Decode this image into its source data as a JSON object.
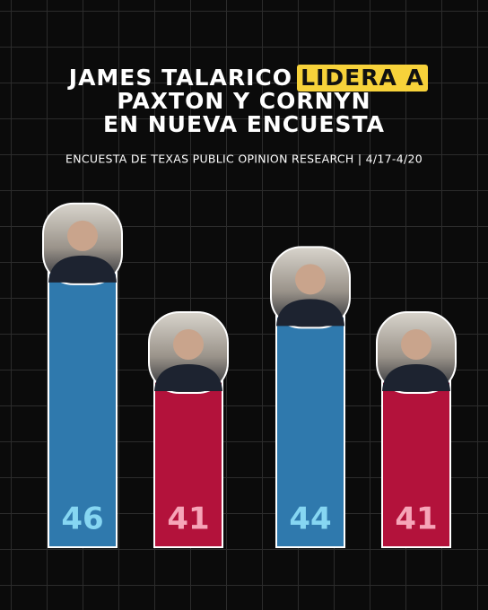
{
  "chart_data": {
    "type": "bar",
    "title": [
      "JAMES TALARICO",
      "LIDERA A",
      "PAXTON Y CORNYN",
      "EN NUEVA ENCUESTA"
    ],
    "subtitle": "ENCUESTA DE TEXAS PUBLIC OPINION RESEARCH | 4/17-4/20",
    "categories": [
      null,
      null,
      null,
      null
    ],
    "values": [
      46,
      41,
      44,
      41
    ],
    "colors": [
      "#2f79ad",
      "#b3123b",
      "#2f79ad",
      "#b3123b"
    ],
    "label_colors": [
      "#86d6f2",
      "#f6a5b8",
      "#86d6f2",
      "#f6a5b8"
    ],
    "highlight_color": "#f7d23a",
    "ylim": [
      32,
      50
    ]
  }
}
